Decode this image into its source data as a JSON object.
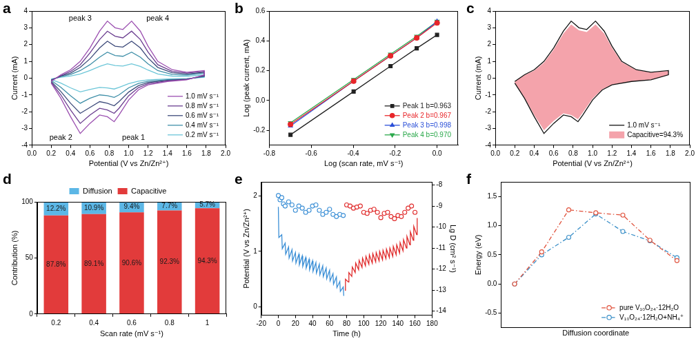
{
  "chart_data": [
    {
      "panel": "a",
      "type": "line",
      "x_label": "Potential (V vs Zn/Zn²⁺)",
      "y_label": "Current (mA)",
      "xlim": [
        0,
        2
      ],
      "xticks": [
        {
          "value": 0,
          "label": "0.0"
        },
        0.2,
        0.4,
        0.6,
        0.8,
        {
          "value": 1,
          "label": "1.0"
        },
        1.2,
        1.4,
        1.6,
        1.8,
        {
          "value": 2,
          "label": "2.0"
        }
      ],
      "ylim": [
        -4,
        4
      ],
      "yticks": [
        -4,
        -3,
        -2,
        -1,
        0,
        1,
        2,
        3,
        4
      ],
      "legend": "lower right",
      "annotations": [
        "peak 3",
        "peak 4",
        "peak 2",
        "peak 1"
      ],
      "x": [
        0.2,
        0.3,
        0.4,
        0.5,
        0.6,
        0.7,
        0.78,
        0.86,
        0.94,
        1.03,
        1.12,
        1.2,
        1.3,
        1.45,
        1.6,
        1.78,
        1.78,
        1.6,
        1.4,
        1.2,
        1.1,
        1.0,
        0.9,
        0.85,
        0.78,
        0.7,
        0.6,
        0.5,
        0.4,
        0.3,
        0.2
      ],
      "series": [
        {
          "name": "1.0 mV s⁻¹",
          "color": "#9b4fb0",
          "marker": "none",
          "line_style": "solid",
          "values": [
            -0.2,
            0.2,
            0.5,
            1.0,
            1.8,
            2.8,
            3.4,
            3.0,
            2.9,
            3.4,
            2.8,
            1.9,
            1.0,
            0.5,
            0.35,
            0.45,
            0.2,
            -0.1,
            -0.2,
            -0.4,
            -0.7,
            -1.3,
            -2.2,
            -2.6,
            -2.3,
            -2.2,
            -2.7,
            -3.3,
            -2.3,
            -1.2,
            -0.3
          ]
        },
        {
          "name": "0.8 mV s⁻¹",
          "color": "#6a3d8f",
          "marker": "none",
          "line_style": "solid",
          "values": [
            -0.15,
            0.15,
            0.4,
            0.8,
            1.5,
            2.3,
            2.8,
            2.5,
            2.4,
            2.8,
            2.3,
            1.55,
            0.8,
            0.4,
            0.3,
            0.4,
            0.15,
            -0.08,
            -0.16,
            -0.33,
            -0.57,
            -1.05,
            -1.8,
            -2.1,
            -1.9,
            -1.8,
            -2.2,
            -2.7,
            -1.9,
            -1.0,
            -0.25
          ]
        },
        {
          "name": "0.6 mV s⁻¹",
          "color": "#3d4a7a",
          "marker": "none",
          "line_style": "solid",
          "values": [
            -0.12,
            0.12,
            0.3,
            0.64,
            1.15,
            1.8,
            2.2,
            1.9,
            1.85,
            2.2,
            1.8,
            1.2,
            0.64,
            0.32,
            0.25,
            0.35,
            0.12,
            -0.06,
            -0.13,
            -0.26,
            -0.45,
            -0.83,
            -1.4,
            -1.65,
            -1.5,
            -1.4,
            -1.75,
            -2.1,
            -1.5,
            -0.8,
            -0.2
          ]
        },
        {
          "name": "0.4 mV s⁻¹",
          "color": "#3f8fa8",
          "marker": "none",
          "line_style": "solid",
          "values": [
            -0.09,
            0.09,
            0.22,
            0.45,
            0.8,
            1.25,
            1.55,
            1.35,
            1.3,
            1.55,
            1.25,
            0.85,
            0.45,
            0.22,
            0.18,
            0.3,
            0.09,
            -0.05,
            -0.09,
            -0.18,
            -0.32,
            -0.58,
            -1.0,
            -1.15,
            -1.05,
            -1.0,
            -1.2,
            -1.5,
            -1.05,
            -0.55,
            -0.14
          ]
        },
        {
          "name": "0.2 mV s⁻¹",
          "color": "#6cc6d8",
          "marker": "none",
          "line_style": "solid",
          "values": [
            -0.05,
            0.05,
            0.12,
            0.25,
            0.45,
            0.7,
            0.85,
            0.75,
            0.72,
            0.85,
            0.7,
            0.48,
            0.25,
            0.12,
            0.1,
            0.2,
            0.05,
            -0.03,
            -0.05,
            -0.1,
            -0.18,
            -0.33,
            -0.55,
            -0.65,
            -0.58,
            -0.55,
            -0.68,
            -0.82,
            -0.58,
            -0.3,
            -0.08
          ]
        }
      ]
    },
    {
      "panel": "b",
      "type": "scatter",
      "x_label": "Log (scan rate, mV s⁻¹)",
      "y_label": "Log (peak current, mA)",
      "xlim": [
        -0.8,
        0.1
      ],
      "xticks": [
        -0.8,
        -0.6,
        -0.4,
        -0.2,
        {
          "value": 0,
          "label": "0.0"
        }
      ],
      "ylim": [
        -0.3,
        0.6
      ],
      "yticks": [
        -0.2,
        {
          "value": 0,
          "label": "0.0"
        },
        0.2,
        0.4,
        0.6
      ],
      "legend": "lower right",
      "x": [
        -0.699,
        -0.398,
        -0.222,
        -0.097,
        0
      ],
      "series": [
        {
          "name": "Peak 1 b=0.963",
          "color": "#222222",
          "marker": "square",
          "line_style": "solid",
          "values": [
            -0.23,
            0.06,
            0.23,
            0.35,
            0.44
          ]
        },
        {
          "name": "Peak 2 b=0.967",
          "color": "#e8262a",
          "marker": "circle",
          "line_style": "solid",
          "values": [
            -0.16,
            0.13,
            0.3,
            0.42,
            0.52
          ]
        },
        {
          "name": "Peak 3 b=0.998",
          "color": "#2a4fd8",
          "marker": "triangle-up",
          "line_style": "solid",
          "values": [
            -0.17,
            0.13,
            0.3,
            0.42,
            0.53
          ]
        },
        {
          "name": "Peak 4 b=0.970",
          "color": "#2aa84a",
          "marker": "triangle-down",
          "line_style": "solid",
          "values": [
            -0.15,
            0.14,
            0.31,
            0.43,
            0.53
          ]
        }
      ]
    },
    {
      "panel": "c",
      "type": "line",
      "x_label": "Potential (V vs Zn/Zn²⁺)",
      "y_label": "Current (mA)",
      "xlim": [
        0,
        2
      ],
      "xticks": [
        {
          "value": 0,
          "label": "0.0"
        },
        0.2,
        0.4,
        0.6,
        0.8,
        {
          "value": 1,
          "label": "1.0"
        },
        1.2,
        1.4,
        1.6,
        1.8,
        {
          "value": 2,
          "label": "2.0"
        }
      ],
      "ylim": [
        -4,
        4
      ],
      "yticks": [
        -4,
        -3,
        -2,
        -1,
        0,
        1,
        2,
        3,
        4
      ],
      "legend": "lower right",
      "x": [
        0.2,
        0.3,
        0.4,
        0.5,
        0.6,
        0.7,
        0.78,
        0.86,
        0.94,
        1.03,
        1.12,
        1.2,
        1.3,
        1.45,
        1.6,
        1.78,
        1.78,
        1.6,
        1.4,
        1.2,
        1.1,
        1.0,
        0.9,
        0.85,
        0.78,
        0.7,
        0.6,
        0.5,
        0.4,
        0.3,
        0.2
      ],
      "series": [
        {
          "name": "1.0 mV s⁻¹",
          "color": "#111111",
          "marker": "none",
          "line_style": "solid",
          "values": [
            -0.2,
            0.2,
            0.5,
            1.0,
            1.8,
            2.8,
            3.4,
            3.0,
            2.9,
            3.4,
            2.8,
            1.9,
            1.0,
            0.5,
            0.35,
            0.45,
            0.2,
            -0.1,
            -0.2,
            -0.4,
            -0.7,
            -1.3,
            -2.2,
            -2.6,
            -2.3,
            -2.2,
            -2.7,
            -3.3,
            -2.3,
            -1.2,
            -0.3
          ]
        },
        {
          "name": "Capacitive=94.3%",
          "color": "#f4a3ab",
          "type": "area",
          "marker": "none",
          "line_style": "none",
          "values": [
            -0.2,
            0.18,
            0.45,
            0.92,
            1.7,
            2.65,
            3.2,
            2.85,
            2.75,
            3.2,
            2.65,
            1.8,
            0.95,
            0.48,
            0.33,
            0.43,
            0.18,
            -0.1,
            -0.19,
            -0.38,
            -0.66,
            -1.22,
            -2.05,
            -2.45,
            -2.2,
            -2.1,
            -2.55,
            -3.1,
            -2.2,
            -1.15,
            -0.3
          ]
        }
      ]
    },
    {
      "panel": "d",
      "type": "bar",
      "stacked": true,
      "data_labels": true,
      "x_label": "Scan rate (mV s⁻¹)",
      "y_label": "Contribution (%)",
      "categories": [
        "0.2",
        "0.4",
        "0.6",
        "0.8",
        "1"
      ],
      "ylim": [
        0,
        100
      ],
      "yticks": [
        0,
        50,
        100
      ],
      "legend": "top",
      "series": [
        {
          "name": "Capacitive",
          "color": "#e23b3b",
          "values": [
            87.8,
            89.1,
            90.6,
            92.3,
            94.3
          ],
          "value_labels": [
            "87.8%",
            "89.1%",
            "90.6%",
            "92.3%",
            "94.3%"
          ]
        },
        {
          "name": "Diffusion",
          "color": "#5cb7e6",
          "values": [
            12.2,
            10.9,
            9.4,
            7.7,
            5.7
          ],
          "value_labels": [
            "12.2%",
            "10.9%",
            "9.4%",
            "7.7%",
            "5.7%"
          ]
        }
      ]
    },
    {
      "panel": "e",
      "type": "line",
      "x_label": "Time (h)",
      "y_label": "Potential (V vs Zn/Zn²⁺)",
      "y2_label": "Lg D (cm² s⁻¹)",
      "xlim": [
        -20,
        180
      ],
      "xticks": [
        -20,
        0,
        20,
        40,
        60,
        80,
        100,
        120,
        140,
        160,
        180
      ],
      "ylim": [
        -0.15,
        2.25
      ],
      "yticks": [
        0,
        1,
        2
      ],
      "y2lim": [
        -14.2,
        -7.85
      ],
      "y2ticks": [
        -14,
        -13,
        -12,
        -11,
        -10,
        -9,
        -8
      ],
      "series": [
        {
          "color": "#3b8fd6",
          "marker": "none",
          "line_style": "solid",
          "x": [
            0,
            0.6,
            4,
            4.6,
            8,
            8.6,
            12,
            12.6,
            16,
            16.6,
            20,
            20.6,
            24,
            24.6,
            28,
            28.6,
            32,
            32.6,
            36,
            36.6,
            40,
            40.6,
            44,
            44.6,
            48,
            48.6,
            52,
            52.6,
            56,
            56.6,
            60,
            60.6,
            64,
            64.6,
            68,
            68.6,
            72,
            72.6,
            76,
            76.6
          ],
          "values": [
            1.8,
            1.25,
            1.3,
            1.05,
            1.15,
            0.95,
            1.08,
            0.88,
            1.03,
            0.83,
            0.98,
            0.79,
            0.95,
            0.76,
            0.92,
            0.73,
            0.89,
            0.7,
            0.86,
            0.67,
            0.83,
            0.64,
            0.8,
            0.61,
            0.77,
            0.58,
            0.74,
            0.55,
            0.7,
            0.51,
            0.66,
            0.47,
            0.6,
            0.41,
            0.54,
            0.35,
            0.46,
            0.28,
            0.36,
            0.2
          ]
        },
        {
          "color": "#e02a2a",
          "marker": "none",
          "line_style": "solid",
          "x": [
            78,
            78.6,
            82,
            82.6,
            86,
            86.6,
            90,
            90.6,
            94,
            94.6,
            98,
            98.6,
            102,
            102.6,
            106,
            106.6,
            110,
            110.6,
            114,
            114.6,
            118,
            118.6,
            122,
            122.6,
            126,
            126.6,
            130,
            130.6,
            134,
            134.6,
            138,
            138.6,
            142,
            142.6,
            146,
            146.6,
            150,
            150.6,
            154,
            154.6,
            158,
            158.6,
            162,
            162.6
          ],
          "values": [
            0.3,
            0.5,
            0.45,
            0.62,
            0.55,
            0.72,
            0.62,
            0.79,
            0.67,
            0.84,
            0.71,
            0.88,
            0.74,
            0.91,
            0.77,
            0.94,
            0.79,
            0.96,
            0.81,
            0.98,
            0.83,
            1.0,
            0.85,
            1.02,
            0.87,
            1.04,
            0.89,
            1.06,
            0.91,
            1.09,
            0.94,
            1.12,
            0.97,
            1.16,
            1.01,
            1.21,
            1.06,
            1.27,
            1.12,
            1.35,
            1.2,
            1.45,
            1.3,
            1.6
          ]
        },
        {
          "color": "#3b8fd6",
          "marker": "open-circle",
          "line_style": "none",
          "axis": "y2",
          "x": [
            0,
            2,
            4,
            6,
            8,
            12,
            16,
            20,
            24,
            28,
            32,
            36,
            40,
            44,
            48,
            52,
            56,
            60,
            64,
            68,
            72,
            76
          ],
          "values": [
            -8.5,
            -8.7,
            -8.6,
            -8.9,
            -9.0,
            -8.8,
            -8.95,
            -9.2,
            -9.0,
            -9.1,
            -9.3,
            -9.2,
            -9.0,
            -8.95,
            -9.2,
            -9.4,
            -9.3,
            -9.15,
            -9.4,
            -9.5,
            -9.4,
            -9.45
          ]
        },
        {
          "color": "#e02a2a",
          "marker": "open-circle",
          "line_style": "none",
          "axis": "y2",
          "x": [
            80,
            84,
            88,
            92,
            96,
            100,
            104,
            108,
            112,
            116,
            120,
            124,
            128,
            132,
            136,
            140,
            144,
            148,
            152,
            156,
            160
          ],
          "values": [
            -8.95,
            -9.0,
            -9.1,
            -9.05,
            -9.0,
            -9.3,
            -9.35,
            -9.2,
            -9.15,
            -9.3,
            -9.55,
            -9.35,
            -9.3,
            -9.5,
            -9.6,
            -9.45,
            -9.5,
            -9.3,
            -9.1,
            -9.0,
            -9.3
          ]
        }
      ]
    },
    {
      "panel": "f",
      "type": "line",
      "tick_labels": "y",
      "x_label": "Diffusion coordinate",
      "y_label": "Energy (eV)",
      "categories": [
        null,
        null,
        null,
        null,
        null,
        null,
        null
      ],
      "ylim": [
        -0.75,
        1.75
      ],
      "yticks": [
        -0.5,
        {
          "value": 0,
          "label": "0.0"
        },
        0.5,
        {
          "value": 1,
          "label": "1.0"
        },
        1.5
      ],
      "legend": "lower right",
      "series": [
        {
          "name": "pure V₁₀O₂₄·12H₂O",
          "color": "#e0503a",
          "marker": "open-circle",
          "line_style": "dashdot",
          "values": [
            0,
            0.55,
            1.27,
            1.22,
            1.18,
            0.75,
            0.4
          ]
        },
        {
          "name": "V₁₀O₂₄·12H₂O+NH₄⁺",
          "color": "#3a8fc8",
          "marker": "open-circle",
          "line_style": "dashdot",
          "values": [
            0,
            0.5,
            0.8,
            1.2,
            0.9,
            0.74,
            0.45
          ]
        }
      ]
    }
  ]
}
